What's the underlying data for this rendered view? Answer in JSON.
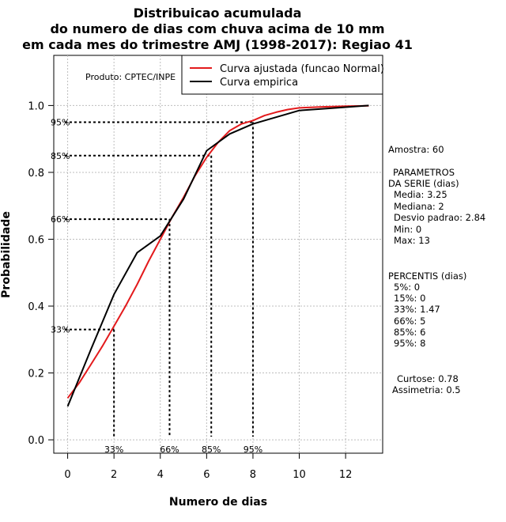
{
  "chart_data": {
    "type": "line",
    "title": [
      "Distribuicao acumulada",
      "do numero de dias com chuva acima de 10 mm",
      "em cada mes do trimestre AMJ (1998-2017): Regiao 41"
    ],
    "xlabel": "Numero de dias",
    "ylabel": "Probabilidade",
    "xlim": [
      -0.6,
      13.6
    ],
    "ylim": [
      -0.04,
      1.15
    ],
    "x_ticks": [
      0,
      2,
      4,
      6,
      8,
      10,
      12
    ],
    "y_ticks": [
      0.0,
      0.2,
      0.4,
      0.6,
      0.8,
      1.0
    ],
    "x_tick_labels": [
      "0",
      "2",
      "4",
      "6",
      "8",
      "10",
      "12"
    ],
    "y_tick_labels": [
      "0.0",
      "0.2",
      "0.4",
      "0.6",
      "0.8",
      "1.0"
    ],
    "grid": true,
    "legend_position": "top-right",
    "series": [
      {
        "name": "Curva ajustada (funcao Normal)",
        "color": "#e31a1c",
        "x": [
          0,
          0.5,
          1,
          1.5,
          2,
          2.5,
          3,
          3.5,
          4,
          4.5,
          5,
          5.5,
          6,
          6.5,
          7,
          7.5,
          8,
          8.5,
          9,
          9.5,
          10,
          11,
          12,
          13
        ],
        "y": [
          0.125,
          0.17,
          0.225,
          0.28,
          0.34,
          0.4,
          0.465,
          0.535,
          0.6,
          0.665,
          0.725,
          0.79,
          0.845,
          0.89,
          0.925,
          0.945,
          0.955,
          0.97,
          0.98,
          0.988,
          0.993,
          0.996,
          0.998,
          0.999
        ]
      },
      {
        "name": "Curva empirica",
        "color": "#000000",
        "x": [
          0,
          1,
          2,
          3,
          4,
          5,
          6,
          7,
          8,
          9,
          10,
          11,
          12,
          13
        ],
        "y": [
          0.1,
          0.27,
          0.435,
          0.56,
          0.61,
          0.72,
          0.865,
          0.915,
          0.945,
          0.965,
          0.985,
          0.99,
          0.995,
          1.0
        ]
      }
    ],
    "percentile_markers": [
      {
        "label": "33%",
        "prob": 0.33,
        "x": 2
      },
      {
        "label": "66%",
        "prob": 0.66,
        "x": 4.4
      },
      {
        "label": "85%",
        "prob": 0.85,
        "x": 6.2
      },
      {
        "label": "95%",
        "prob": 0.95,
        "x": 8
      }
    ],
    "product_label": "Produto: CPTEC/INPE"
  },
  "side_panel": {
    "sample": "Amostra: 60",
    "params_title_1": "PARAMETROS",
    "params_title_2": "DA SERIE (dias)",
    "params": [
      "Media: 3.25",
      "Mediana: 2",
      "Desvio padrao: 2.84",
      "Min: 0",
      "Max: 13"
    ],
    "percentis_title": "PERCENTIS (dias)",
    "percentis": [
      "5%: 0",
      "15%: 0",
      "33%: 1.47",
      "66%: 5",
      "85%: 6",
      "95%: 8"
    ],
    "curtose": "Curtose: 0.78",
    "assimetria": "Assimetria: 0.5"
  }
}
